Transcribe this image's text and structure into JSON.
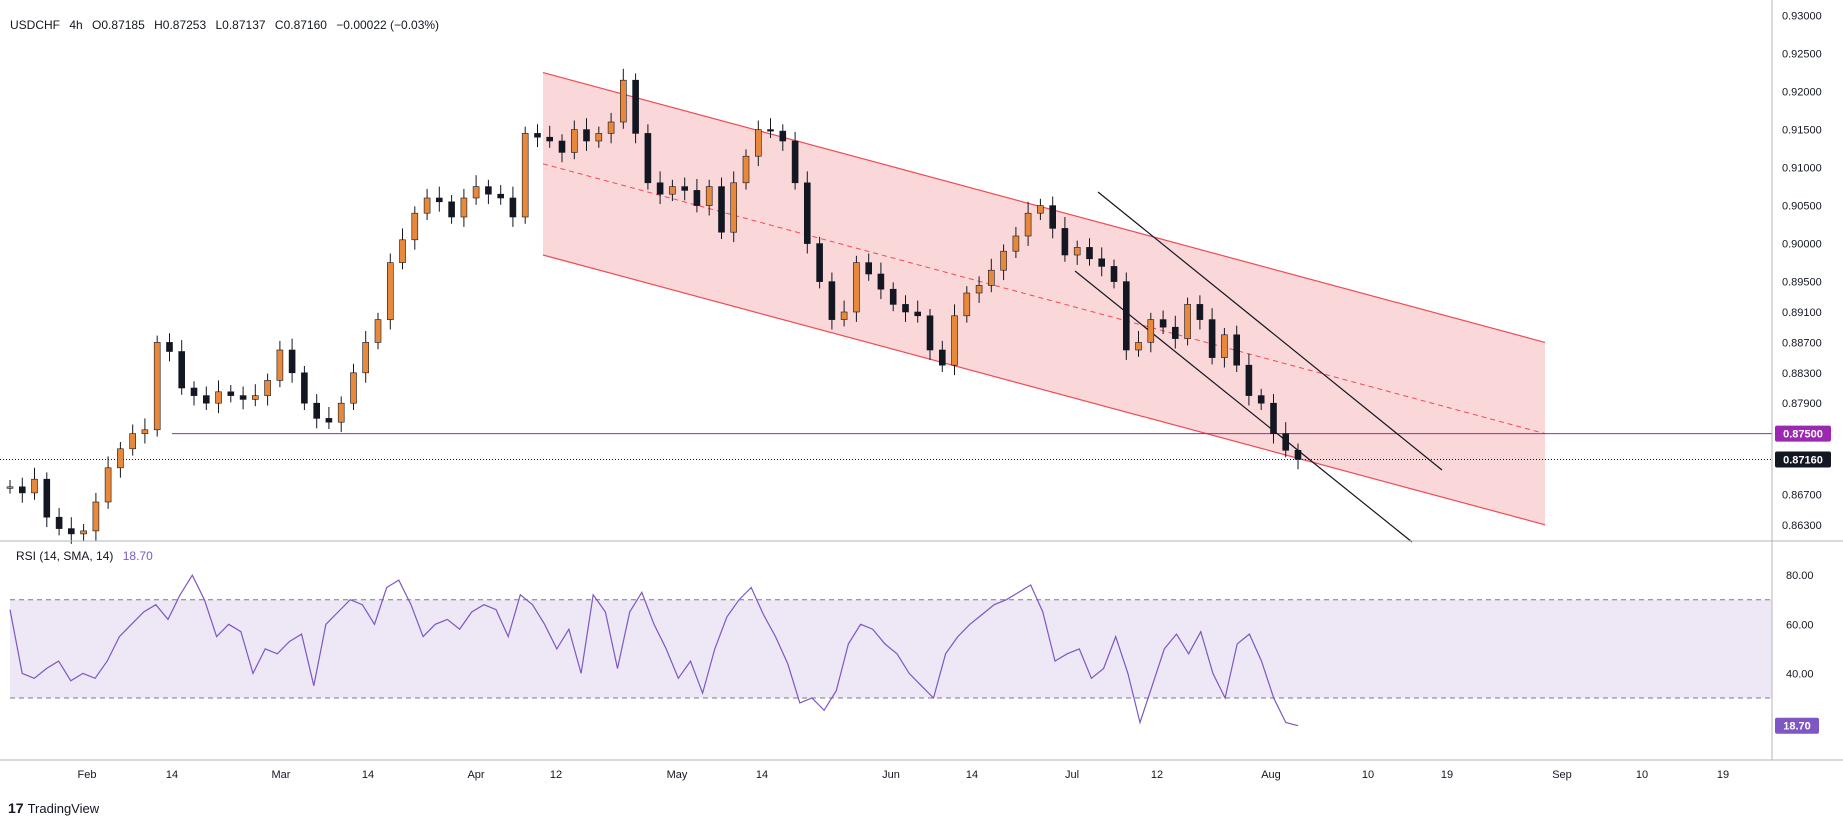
{
  "header": {
    "symbol": "USDCHF",
    "timeframe": "4h",
    "open": "O0.87185",
    "high": "H0.87253",
    "low": "L0.87137",
    "close": "C0.87160",
    "change": "−0.00022 (−0.03%)"
  },
  "rsi_legend": {
    "name": "RSI (14, SMA, 14)",
    "value": "18.70"
  },
  "branding": {
    "logo_text": "TradingView"
  },
  "colors": {
    "up": "#26a69a",
    "candle_up": "#e8883a",
    "candle_down": "#131722",
    "channel_fill": "#f8c9cc",
    "channel_line": "#f04b55",
    "support": "#9c27b0",
    "rsi_line": "#7e57c2",
    "rsi_band": "#ede7f6"
  },
  "chart_data": [
    {
      "type": "line",
      "title": "USDCHF 4h",
      "xlabel": "",
      "ylabel": "",
      "x_ticks": [
        "Feb",
        "14",
        "Mar",
        "14",
        "Apr",
        "12",
        "May",
        "14",
        "Jun",
        "14",
        "Jul",
        "12",
        "Aug",
        "10",
        "19",
        "Sep",
        "10",
        "19"
      ],
      "y_ticks": [
        "0.93000",
        "0.92500",
        "0.92000",
        "0.91500",
        "0.91000",
        "0.90500",
        "0.90000",
        "0.89500",
        "0.89100",
        "0.88700",
        "0.88300",
        "0.87900",
        "0.87500",
        "0.87160",
        "0.86700",
        "0.86300"
      ],
      "ylim": [
        0.861,
        0.931
      ],
      "series": [
        {
          "values": [
            0.868,
            0.8672,
            0.869,
            0.864,
            0.8625,
            0.8618,
            0.8622,
            0.866,
            0.8705,
            0.873,
            0.875,
            0.8755,
            0.887,
            0.8858,
            0.881,
            0.88,
            0.879,
            0.8805,
            0.88,
            0.8795,
            0.88,
            0.882,
            0.886,
            0.883,
            0.879,
            0.877,
            0.8765,
            0.879,
            0.883,
            0.887,
            0.89,
            0.8975,
            0.9005,
            0.904,
            0.906,
            0.9055,
            0.9035,
            0.906,
            0.9075,
            0.9065,
            0.906,
            0.9035,
            0.9145,
            0.914,
            0.9135,
            0.912,
            0.915,
            0.9135,
            0.9145,
            0.916,
            0.9215,
            0.9145,
            0.908,
            0.9065,
            0.9075,
            0.907,
            0.905,
            0.9075,
            0.9015,
            0.908,
            0.9115,
            0.915,
            0.9148,
            0.9135,
            0.908,
            0.9,
            0.895,
            0.89,
            0.891,
            0.8975,
            0.896,
            0.894,
            0.892,
            0.891,
            0.8905,
            0.886,
            0.884,
            0.8905,
            0.8935,
            0.8945,
            0.8965,
            0.899,
            0.901,
            0.904,
            0.905,
            0.902,
            0.8985,
            0.8995,
            0.898,
            0.897,
            0.895,
            0.886,
            0.887,
            0.89,
            0.889,
            0.8875,
            0.892,
            0.89,
            0.885,
            0.888,
            0.884,
            0.88,
            0.879,
            0.875,
            0.8728,
            0.8716
          ],
          "x_start": "Jan 18",
          "x_end": "Aug 2"
        }
      ],
      "annotations": {
        "channel": "descending regression channel",
        "horizontal_level": "0.87500",
        "last_price": "0.87160"
      }
    },
    {
      "type": "line",
      "title": "RSI (14, SMA, 14)",
      "y_ticks": [
        "80.00",
        "60.00",
        "40.00"
      ],
      "ylim": [
        8,
        87
      ],
      "bands": [
        30,
        70
      ],
      "last_value": "18.70",
      "series": [
        {
          "values": [
            66,
            40,
            38,
            42,
            45,
            37,
            40,
            38,
            45,
            55,
            60,
            65,
            68,
            62,
            72,
            80,
            70,
            55,
            60,
            57,
            40,
            50,
            48,
            53,
            56,
            35,
            60,
            65,
            70,
            68,
            60,
            75,
            78,
            68,
            55,
            60,
            62,
            58,
            65,
            68,
            66,
            55,
            72,
            68,
            60,
            50,
            58,
            40,
            72,
            65,
            42,
            65,
            73,
            60,
            50,
            38,
            45,
            32,
            50,
            63,
            70,
            75,
            64,
            55,
            44,
            28,
            30,
            25,
            33,
            52,
            60,
            58,
            52,
            48,
            40,
            35,
            30,
            48,
            55,
            60,
            64,
            68,
            70,
            73,
            76,
            65,
            45,
            48,
            50,
            38,
            42,
            55,
            40,
            20,
            35,
            50,
            56,
            48,
            57,
            40,
            30,
            52,
            56,
            45,
            30,
            20,
            18.7
          ]
        }
      ]
    }
  ]
}
